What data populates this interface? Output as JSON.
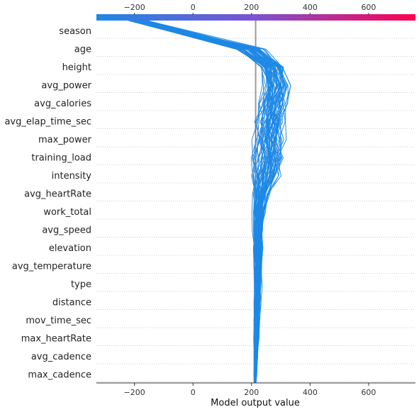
{
  "chart_data": {
    "type": "line",
    "title": "",
    "xlabel": "Model output value",
    "ylabel": "",
    "xlim": [
      -330,
      760
    ],
    "xticks": [
      -200,
      0,
      200,
      400,
      600
    ],
    "tick_labels": [
      "−200",
      "0",
      "200",
      "400",
      "600"
    ],
    "base_value": 214,
    "grid": "dotted rows",
    "colorbar": {
      "position": "top",
      "from": "#1e88e5",
      "to": "#ff0051"
    },
    "features": [
      "season",
      "age",
      "height",
      "avg_power",
      "avg_calories",
      "avg_elap_time_sec",
      "max_power",
      "training_load",
      "intensity",
      "avg_heartRate",
      "work_total",
      "avg_speed",
      "elevation",
      "avg_temperature",
      "type",
      "distance",
      "mov_time_sec",
      "max_heartRate",
      "avg_cadence",
      "max_cadence"
    ],
    "series_count": 60,
    "series_color": "#1e88e5",
    "path_envelope": {
      "center": [
        212,
        213,
        215,
        216,
        218,
        220,
        222,
        222,
        222,
        222,
        225,
        235,
        248,
        258,
        260,
        265,
        275,
        285,
        270,
        195,
        -190
      ],
      "spread": [
        4,
        5,
        8,
        10,
        11,
        12,
        14,
        16,
        18,
        20,
        24,
        32,
        52,
        60,
        58,
        60,
        55,
        48,
        52,
        55,
        25
      ]
    }
  },
  "colors": {
    "line": "#1e88e5",
    "grid": "#cccccc",
    "base_line": "#999999",
    "cbar_start": "#1e88e5",
    "cbar_end": "#ff0051"
  }
}
